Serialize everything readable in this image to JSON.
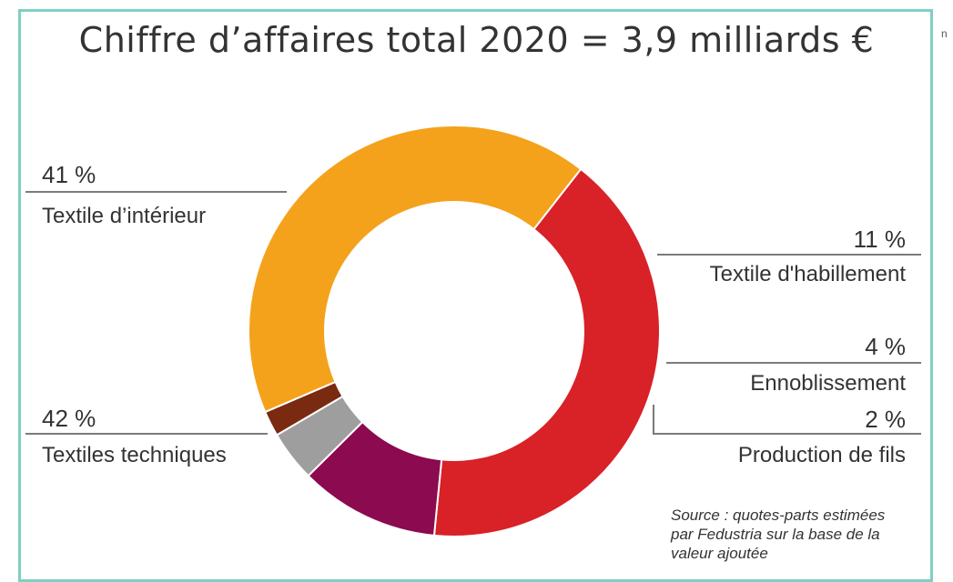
{
  "title": "Chiffre d’affaires total 2020 = 3,9 milliards €",
  "edge_mark": "n",
  "source": [
    "Source : quotes-parts estimées",
    "par Fedustria sur la base de la",
    "valeur ajoutée"
  ],
  "colors": {
    "frame": "#7fcfc3",
    "textile_interieur": "#d92128",
    "textile_habillement": "#8b0a50",
    "ennoblissement": "#9e9e9e",
    "production_fils": "#7a2a10",
    "textiles_techniques": "#f4a21b"
  },
  "chart_data": {
    "type": "pie",
    "donut": true,
    "title": "Chiffre d’affaires total 2020 = 3,9 milliards €",
    "slices": [
      {
        "label": "Textile d’intérieur",
        "percent_label": "41 %",
        "value": 41,
        "color": "#d92128"
      },
      {
        "label": "Textile d'habillement",
        "percent_label": "11 %",
        "value": 11,
        "color": "#8b0a50"
      },
      {
        "label": "Ennoblissement",
        "percent_label": "4 %",
        "value": 4,
        "color": "#9e9e9e"
      },
      {
        "label": "Production de fils",
        "percent_label": "2 %",
        "value": 2,
        "color": "#7a2a10"
      },
      {
        "label": "Textiles techniques",
        "percent_label": "42 %",
        "value": 42,
        "color": "#f4a21b"
      }
    ]
  }
}
